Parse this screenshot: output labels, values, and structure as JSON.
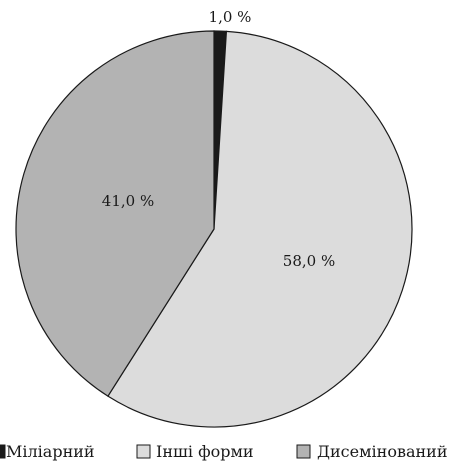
{
  "chart_data": {
    "type": "pie",
    "title": "",
    "legend_position": "bottom",
    "slices": [
      {
        "name": "Міліарний",
        "value": 1.0,
        "label": "1,0 %",
        "color": "#1a1a1a"
      },
      {
        "name": "Інші форми",
        "value": 58.0,
        "label": "58,0 %",
        "color": "#dcdcdc"
      },
      {
        "name": "Дисемінований",
        "value": 41.0,
        "label": "41,0 %",
        "color": "#b3b3b3"
      }
    ]
  }
}
